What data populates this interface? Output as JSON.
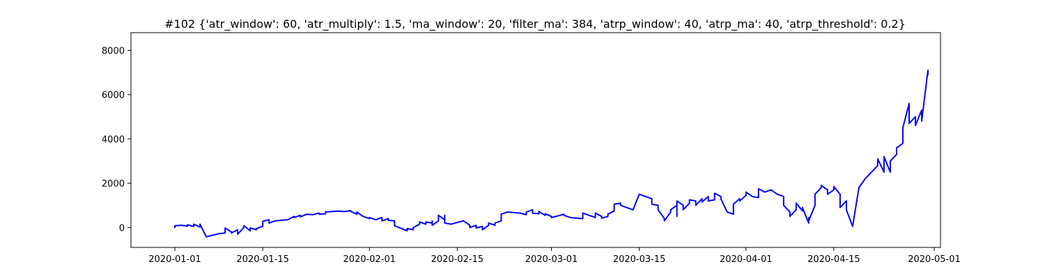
{
  "chart_data": {
    "type": "line",
    "title": "#102 {'atr_window': 60, 'atr_multiply': 1.5, 'ma_window': 20, 'filter_ma': 384, 'atrp_window': 40, 'atrp_ma': 40, 'atrp_threshold': 0.2}",
    "xlabel": "",
    "ylabel": "",
    "x_axis_type": "date",
    "xlim": [
      "2019-12-25",
      "2020-05-02"
    ],
    "ylim": [
      -900,
      8800
    ],
    "grid": false,
    "x_ticks": [
      "2020-01-01",
      "2020-01-15",
      "2020-02-01",
      "2020-02-15",
      "2020-03-01",
      "2020-03-15",
      "2020-04-01",
      "2020-04-15",
      "2020-05-01"
    ],
    "y_ticks": [
      0,
      2000,
      4000,
      6000,
      8000
    ],
    "y_tick_labels": [
      "0",
      "2000",
      "4000",
      "6000",
      "8000"
    ],
    "series": [
      {
        "color": "#0000ff",
        "points": [
          [
            "2020-01-01",
            0
          ],
          [
            "2020-01-01",
            80
          ],
          [
            "2020-01-02",
            100
          ],
          [
            "2020-01-03",
            60
          ],
          [
            "2020-01-03",
            120
          ],
          [
            "2020-01-04",
            50
          ],
          [
            "2020-01-04",
            150
          ],
          [
            "2020-01-05",
            20
          ],
          [
            "2020-01-05",
            150
          ],
          [
            "2020-01-06",
            -420
          ],
          [
            "2020-01-08",
            -280
          ],
          [
            "2020-01-09",
            -250
          ],
          [
            "2020-01-09",
            -20
          ],
          [
            "2020-01-10",
            -200
          ],
          [
            "2020-01-10",
            -250
          ],
          [
            "2020-01-11",
            -100
          ],
          [
            "2020-01-11",
            -300
          ],
          [
            "2020-01-12",
            0
          ],
          [
            "2020-01-12",
            80
          ],
          [
            "2020-01-13",
            -150
          ],
          [
            "2020-01-13",
            -20
          ],
          [
            "2020-01-14",
            -100
          ],
          [
            "2020-01-14",
            -50
          ],
          [
            "2020-01-15",
            50
          ],
          [
            "2020-01-15",
            280
          ],
          [
            "2020-01-16",
            350
          ],
          [
            "2020-01-16",
            200
          ],
          [
            "2020-01-17",
            300
          ],
          [
            "2020-01-19",
            350
          ],
          [
            "2020-01-20",
            500
          ],
          [
            "2020-01-20",
            450
          ],
          [
            "2020-01-21",
            550
          ],
          [
            "2020-01-21",
            480
          ],
          [
            "2020-01-22",
            600
          ],
          [
            "2020-01-23",
            580
          ],
          [
            "2020-01-24",
            650
          ],
          [
            "2020-01-24",
            600
          ],
          [
            "2020-01-25",
            620
          ],
          [
            "2020-01-25",
            700
          ],
          [
            "2020-01-27",
            740
          ],
          [
            "2020-01-28",
            720
          ],
          [
            "2020-01-29",
            760
          ],
          [
            "2020-01-29",
            730
          ],
          [
            "2020-01-30",
            600
          ],
          [
            "2020-01-30",
            700
          ],
          [
            "2020-01-31",
            500
          ],
          [
            "2020-02-01",
            400
          ],
          [
            "2020-02-01",
            450
          ],
          [
            "2020-02-02",
            350
          ],
          [
            "2020-02-03",
            450
          ],
          [
            "2020-02-03",
            300
          ],
          [
            "2020-02-04",
            400
          ],
          [
            "2020-02-04",
            320
          ],
          [
            "2020-02-05",
            300
          ],
          [
            "2020-02-05",
            80
          ],
          [
            "2020-02-07",
            -150
          ],
          [
            "2020-02-07",
            -50
          ],
          [
            "2020-02-08",
            -100
          ],
          [
            "2020-02-08",
            0
          ],
          [
            "2020-02-09",
            150
          ],
          [
            "2020-02-09",
            250
          ],
          [
            "2020-02-10",
            150
          ],
          [
            "2020-02-10",
            250
          ],
          [
            "2020-02-11",
            200
          ],
          [
            "2020-02-11",
            300
          ],
          [
            "2020-02-11",
            100
          ],
          [
            "2020-02-12",
            300
          ],
          [
            "2020-02-12",
            550
          ],
          [
            "2020-02-13",
            350
          ],
          [
            "2020-02-13",
            550
          ],
          [
            "2020-02-13",
            200
          ],
          [
            "2020-02-14",
            150
          ],
          [
            "2020-02-16",
            300
          ],
          [
            "2020-02-17",
            100
          ],
          [
            "2020-02-17",
            0
          ],
          [
            "2020-02-18",
            100
          ],
          [
            "2020-02-18",
            -20
          ],
          [
            "2020-02-19",
            50
          ],
          [
            "2020-02-19",
            -100
          ],
          [
            "2020-02-20",
            100
          ],
          [
            "2020-02-20",
            200
          ],
          [
            "2020-02-21",
            100
          ],
          [
            "2020-02-21",
            200
          ],
          [
            "2020-02-22",
            300
          ],
          [
            "2020-02-22",
            600
          ],
          [
            "2020-02-23",
            700
          ],
          [
            "2020-02-25",
            650
          ],
          [
            "2020-02-26",
            580
          ],
          [
            "2020-02-26",
            700
          ],
          [
            "2020-02-27",
            800
          ],
          [
            "2020-02-27",
            650
          ],
          [
            "2020-02-28",
            620
          ],
          [
            "2020-02-28",
            720
          ],
          [
            "2020-02-29",
            550
          ],
          [
            "2020-02-29",
            620
          ],
          [
            "2020-03-01",
            500
          ],
          [
            "2020-03-01",
            450
          ],
          [
            "2020-03-02",
            520
          ],
          [
            "2020-03-03",
            600
          ],
          [
            "2020-03-03",
            550
          ],
          [
            "2020-03-04",
            450
          ],
          [
            "2020-03-06",
            400
          ],
          [
            "2020-03-06",
            650
          ],
          [
            "2020-03-07",
            550
          ],
          [
            "2020-03-08",
            450
          ],
          [
            "2020-03-08",
            650
          ],
          [
            "2020-03-09",
            500
          ],
          [
            "2020-03-09",
            420
          ],
          [
            "2020-03-10",
            500
          ],
          [
            "2020-03-10",
            550
          ],
          [
            "2020-03-10",
            600
          ],
          [
            "2020-03-11",
            750
          ],
          [
            "2020-03-11",
            800
          ],
          [
            "2020-03-11",
            1050
          ],
          [
            "2020-03-12",
            1100
          ],
          [
            "2020-03-12",
            1000
          ],
          [
            "2020-03-13",
            900
          ],
          [
            "2020-03-14",
            800
          ],
          [
            "2020-03-15",
            1500
          ],
          [
            "2020-03-17",
            1300
          ],
          [
            "2020-03-17",
            1050
          ],
          [
            "2020-03-18",
            1000
          ],
          [
            "2020-03-18",
            800
          ],
          [
            "2020-03-19",
            400
          ],
          [
            "2020-03-19",
            300
          ],
          [
            "2020-03-20",
            700
          ],
          [
            "2020-03-20",
            800
          ],
          [
            "2020-03-21",
            1000
          ],
          [
            "2020-03-21",
            500
          ],
          [
            "2020-03-21",
            1200
          ],
          [
            "2020-03-22",
            1000
          ],
          [
            "2020-03-22",
            800
          ],
          [
            "2020-03-23",
            1100
          ],
          [
            "2020-03-23",
            1250
          ],
          [
            "2020-03-24",
            1200
          ],
          [
            "2020-03-24",
            1000
          ],
          [
            "2020-03-25",
            1300
          ],
          [
            "2020-03-25",
            1150
          ],
          [
            "2020-03-26",
            1400
          ],
          [
            "2020-03-26",
            1200
          ],
          [
            "2020-03-27",
            1250
          ],
          [
            "2020-03-27",
            1550
          ],
          [
            "2020-03-28",
            1400
          ],
          [
            "2020-03-28",
            1300
          ],
          [
            "2020-03-29",
            700
          ],
          [
            "2020-03-30",
            600
          ],
          [
            "2020-03-30",
            1050
          ],
          [
            "2020-03-31",
            1300
          ],
          [
            "2020-03-31",
            1200
          ],
          [
            "2020-04-01",
            1450
          ],
          [
            "2020-04-01",
            1600
          ],
          [
            "2020-04-02",
            1400
          ],
          [
            "2020-04-03",
            1350
          ],
          [
            "2020-04-03",
            1750
          ],
          [
            "2020-04-04",
            1600
          ],
          [
            "2020-04-05",
            1700
          ],
          [
            "2020-04-06",
            1500
          ],
          [
            "2020-04-07",
            1400
          ],
          [
            "2020-04-07",
            1000
          ],
          [
            "2020-04-08",
            700
          ],
          [
            "2020-04-08",
            500
          ],
          [
            "2020-04-09",
            800
          ],
          [
            "2020-04-09",
            1100
          ],
          [
            "2020-04-10",
            750
          ],
          [
            "2020-04-10",
            900
          ],
          [
            "2020-04-11",
            200
          ],
          [
            "2020-04-11",
            450
          ],
          [
            "2020-04-11",
            300
          ],
          [
            "2020-04-12",
            1000
          ],
          [
            "2020-04-12",
            1500
          ],
          [
            "2020-04-13",
            1800
          ],
          [
            "2020-04-13",
            1900
          ],
          [
            "2020-04-14",
            1700
          ],
          [
            "2020-04-14",
            1500
          ],
          [
            "2020-04-15",
            1700
          ],
          [
            "2020-04-15",
            1850
          ],
          [
            "2020-04-16",
            1500
          ],
          [
            "2020-04-16",
            900
          ],
          [
            "2020-04-17",
            1200
          ],
          [
            "2020-04-17",
            800
          ],
          [
            "2020-04-18",
            50
          ],
          [
            "2020-04-19",
            1800
          ],
          [
            "2020-04-20",
            2200
          ],
          [
            "2020-04-21",
            2500
          ],
          [
            "2020-04-22",
            2800
          ],
          [
            "2020-04-22",
            3100
          ],
          [
            "2020-04-23",
            2500
          ],
          [
            "2020-04-23",
            3200
          ],
          [
            "2020-04-24",
            2500
          ],
          [
            "2020-04-24",
            3000
          ],
          [
            "2020-04-25",
            3300
          ],
          [
            "2020-04-25",
            3600
          ],
          [
            "2020-04-26",
            3800
          ],
          [
            "2020-04-26",
            4500
          ],
          [
            "2020-04-27",
            5600
          ],
          [
            "2020-04-27",
            4700
          ],
          [
            "2020-04-28",
            5000
          ],
          [
            "2020-04-28",
            4600
          ],
          [
            "2020-04-29",
            5300
          ],
          [
            "2020-04-29",
            4800
          ],
          [
            "2020-04-30",
            7100
          ],
          [
            "2020-04-30",
            6900
          ]
        ]
      }
    ]
  }
}
